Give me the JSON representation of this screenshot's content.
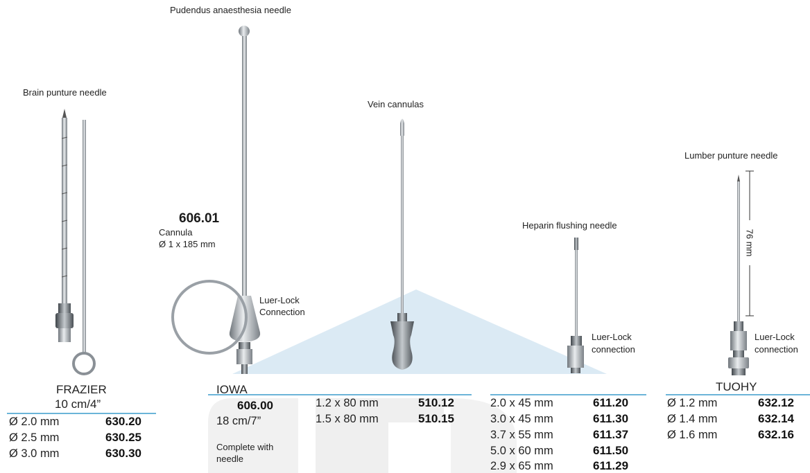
{
  "labels": {
    "pudendus": "Pudendus anaesthesia needle",
    "brain": "Brain punture needle",
    "vein": "Vein cannulas",
    "lumber": "Lumber punture needle",
    "heparin": "Heparin flushing needle",
    "luer_lock_1": "Luer-Lock",
    "connection_1": "Connection",
    "luer_lock_2": "Luer-Lock",
    "connection_2": "connection",
    "luer_lock_3": "Luer-Lock",
    "connection_3": "connection",
    "dimension": "76 mm"
  },
  "pudendus_spec": {
    "code": "606.01",
    "line1": "Cannula",
    "line2": "Ø 1 x 185 mm"
  },
  "frazier": {
    "name": "FRAZIER",
    "size": "10 cm/4”",
    "rows": [
      {
        "dim": "Ø 2.0 mm",
        "code": "630.20"
      },
      {
        "dim": "Ø 2.5 mm",
        "code": "630.25"
      },
      {
        "dim": "Ø 3.0 mm",
        "code": "630.30"
      }
    ]
  },
  "iowa": {
    "name": "IOWA",
    "code": "606.00",
    "size": "18 cm/7”",
    "note1": "Complete with",
    "note2": "needle"
  },
  "vein_table": [
    {
      "dim": "1.2 x 80 mm",
      "code": "510.12"
    },
    {
      "dim": "1.5 x 80 mm",
      "code": "510.15"
    }
  ],
  "heparin_table": [
    {
      "dim": "2.0 x 45 mm",
      "code": "611.20"
    },
    {
      "dim": "3.0 x 45 mm",
      "code": "611.30"
    },
    {
      "dim": "3.7 x 55 mm",
      "code": "611.37"
    },
    {
      "dim": "5.0 x 60 mm",
      "code": "611.50"
    },
    {
      "dim": "2.9 x 65 mm",
      "code": "611.29"
    }
  ],
  "tuohy": {
    "name": "TUOHY",
    "rows": [
      {
        "dim": "Ø 1.2 mm",
        "code": "632.12"
      },
      {
        "dim": "Ø 1.4 mm",
        "code": "632.14"
      },
      {
        "dim": "Ø 1.6 mm",
        "code": "632.16"
      }
    ]
  },
  "colors": {
    "rule": "#6bb4d8",
    "watermark_blue": "#dbeaf4",
    "watermark_grey": "#f1f1f1",
    "steel": "#9aa0a6"
  }
}
